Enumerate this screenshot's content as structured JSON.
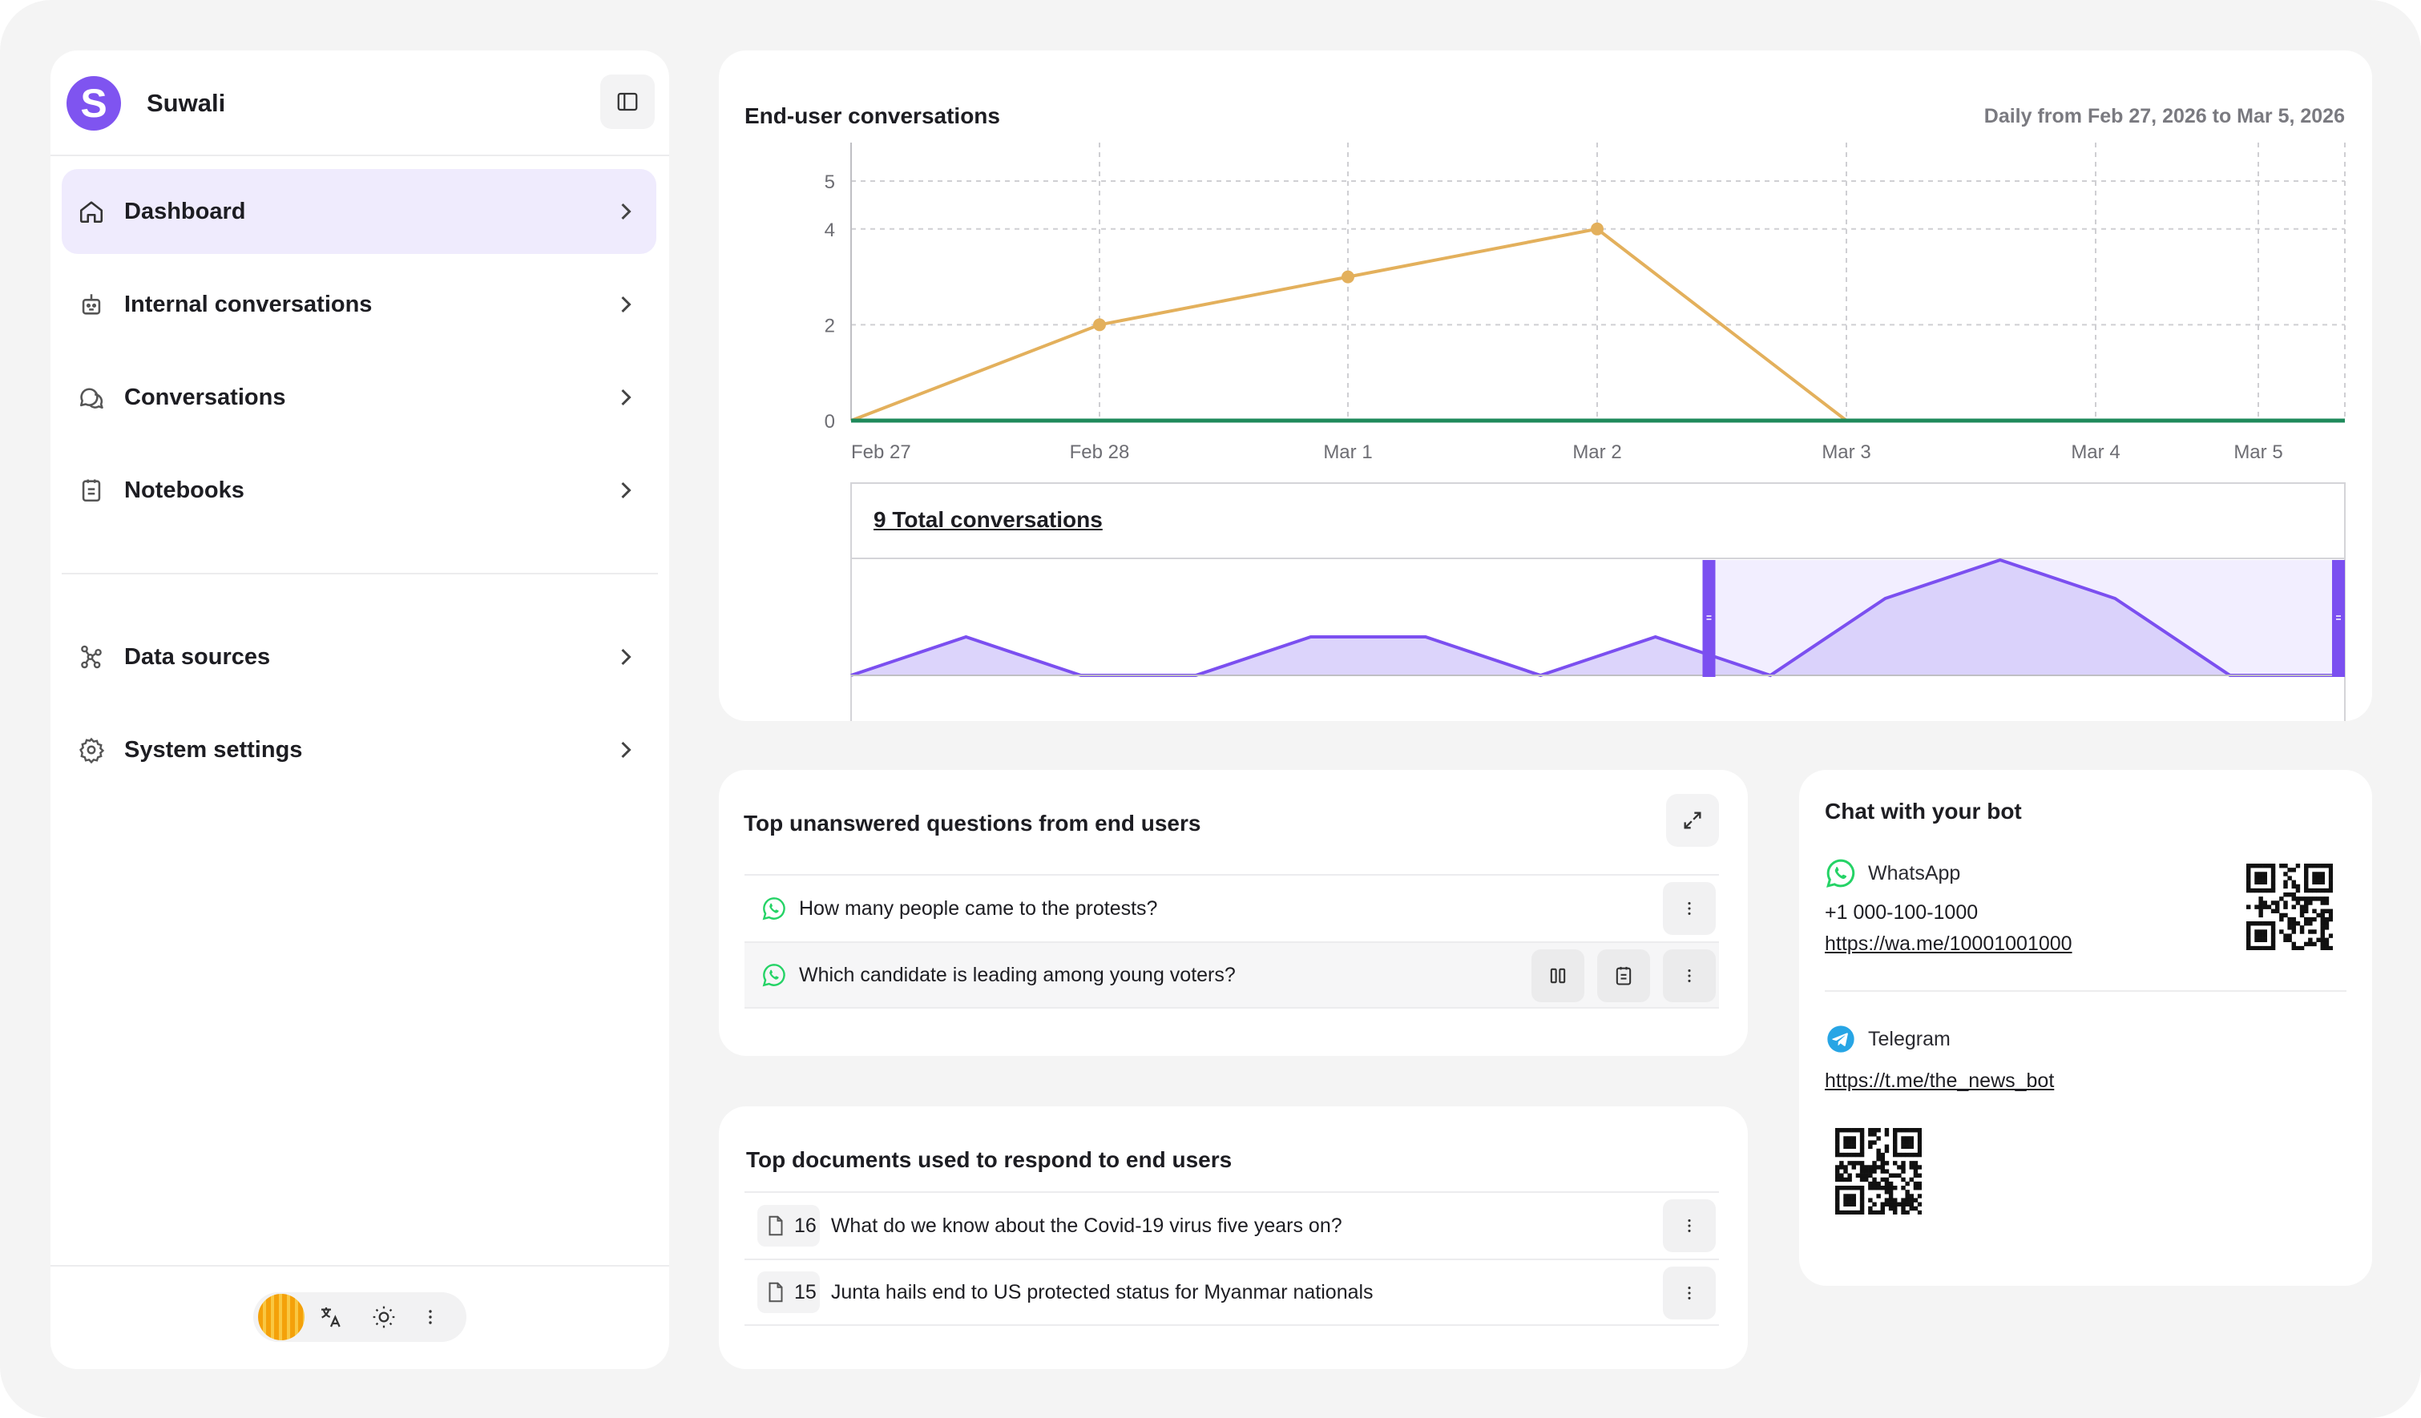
{
  "sidebar": {
    "brand": {
      "initial": "S",
      "name": "Suwali"
    },
    "items": [
      {
        "label": "Dashboard",
        "icon": "home-icon",
        "active": true
      },
      {
        "label": "Internal conversations",
        "icon": "bot-icon"
      },
      {
        "label": "Conversations",
        "icon": "chat-bubbles-icon"
      },
      {
        "label": "Notebooks",
        "icon": "notebook-icon"
      },
      {
        "label": "Data sources",
        "icon": "nodes-icon"
      },
      {
        "label": "System settings",
        "icon": "gear-icon"
      }
    ],
    "footer": {
      "icons": [
        "avatar",
        "translate-icon",
        "sun-icon",
        "more-icon"
      ]
    }
  },
  "chart_card": {
    "title": "End-user conversations",
    "range": "Daily from Feb 27, 2026 to Mar 5, 2026",
    "total_label": "9 Total conversations"
  },
  "chart_data": {
    "type": "line",
    "x": [
      "Feb 27",
      "Feb 28",
      "Mar 1",
      "Mar 2",
      "Mar 3",
      "Mar 4",
      "Mar 5"
    ],
    "ylim": [
      0,
      5
    ],
    "yticks": [
      0,
      2,
      4,
      5
    ],
    "series": [
      {
        "color": "#e3b05c",
        "values": [
          0,
          2,
          3,
          4,
          0,
          0,
          0
        ]
      },
      {
        "color": "#1f8a5b",
        "values": [
          0,
          0,
          0,
          0,
          0,
          0,
          0
        ]
      }
    ],
    "grid": true,
    "brush": {
      "color": "#7b4ff0",
      "values": [
        0,
        1,
        0,
        0,
        1,
        1,
        0,
        1,
        0,
        2,
        3,
        2,
        0,
        0
      ],
      "selection": [
        0.57,
        1.0
      ]
    }
  },
  "questions_card": {
    "title": "Top unanswered questions from end users",
    "rows": [
      {
        "text": "How many people came to the protests?"
      },
      {
        "text": "Which candidate is leading among young voters?"
      }
    ]
  },
  "documents_card": {
    "title": "Top documents used to respond to end users",
    "rows": [
      {
        "count": "16",
        "text": "What do we know about the Covid-19 virus five years on?"
      },
      {
        "count": "15",
        "text": "Junta hails end to US protected status for Myanmar nationals"
      }
    ]
  },
  "chat_card": {
    "title": "Chat with your bot",
    "whatsapp": {
      "name": "WhatsApp",
      "phone": "+1 000-100-1000",
      "link": "https://wa.me/10001001000"
    },
    "telegram": {
      "name": "Telegram",
      "link": "https://t.me/the_news_bot"
    }
  },
  "colors": {
    "accent": "#7f54f0",
    "whatsapp": "#25d366",
    "telegram": "#27a5e5"
  }
}
